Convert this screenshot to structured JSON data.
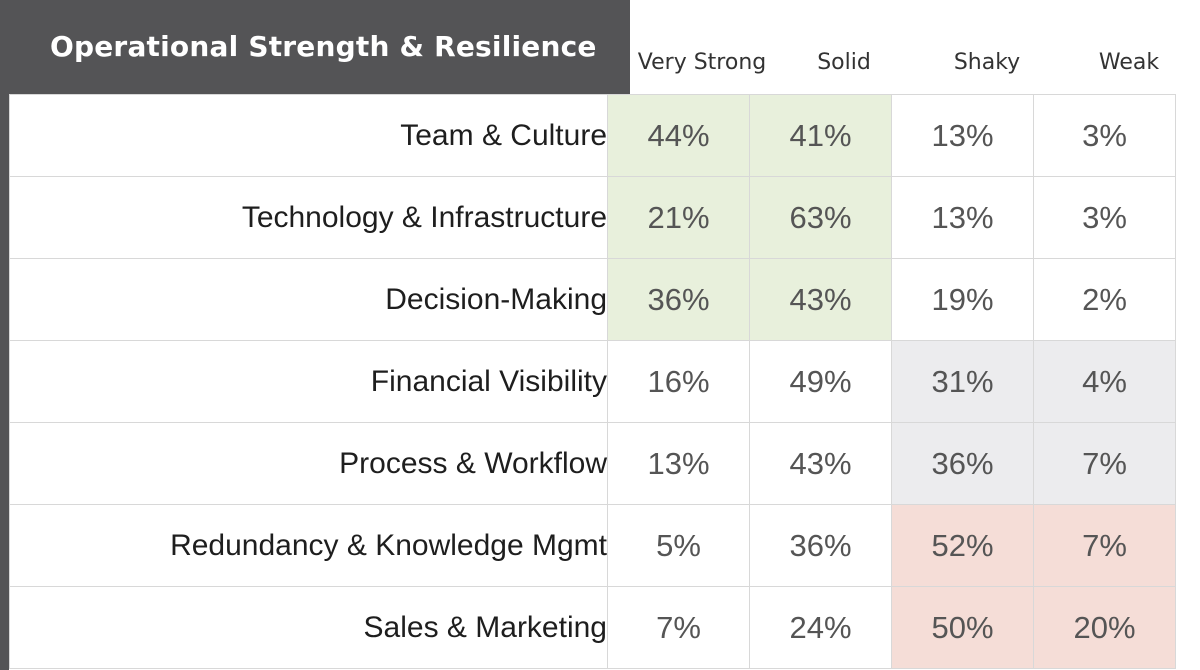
{
  "chart_data": {
    "type": "table",
    "title": "Operational Strength & Resilience",
    "columns": [
      "Very Strong",
      "Solid",
      "Shaky",
      "Weak"
    ],
    "rows": [
      {
        "label": "Team & Culture",
        "values": [
          "44%",
          "41%",
          "13%",
          "3%"
        ],
        "highlight": [
          "green",
          "green",
          "none",
          "none"
        ]
      },
      {
        "label": "Technology & Infrastructure",
        "values": [
          "21%",
          "63%",
          "13%",
          "3%"
        ],
        "highlight": [
          "green",
          "green",
          "none",
          "none"
        ]
      },
      {
        "label": "Decision-Making",
        "values": [
          "36%",
          "43%",
          "19%",
          "2%"
        ],
        "highlight": [
          "green",
          "green",
          "none",
          "none"
        ]
      },
      {
        "label": "Financial Visibility",
        "values": [
          "16%",
          "49%",
          "31%",
          "4%"
        ],
        "highlight": [
          "none",
          "none",
          "grey",
          "grey"
        ]
      },
      {
        "label": "Process & Workflow",
        "values": [
          "13%",
          "43%",
          "36%",
          "7%"
        ],
        "highlight": [
          "none",
          "none",
          "grey",
          "grey"
        ]
      },
      {
        "label": "Redundancy & Knowledge Mgmt",
        "values": [
          "5%",
          "36%",
          "52%",
          "7%"
        ],
        "highlight": [
          "none",
          "none",
          "red",
          "red"
        ]
      },
      {
        "label": "Sales & Marketing",
        "values": [
          "7%",
          "24%",
          "50%",
          "20%"
        ],
        "highlight": [
          "none",
          "none",
          "red",
          "red"
        ]
      }
    ]
  },
  "colors": {
    "title_bar": "#545456",
    "highlight_green": "#e8f0dc",
    "highlight_grey": "#ececee",
    "highlight_red": "#f5ddd7"
  }
}
